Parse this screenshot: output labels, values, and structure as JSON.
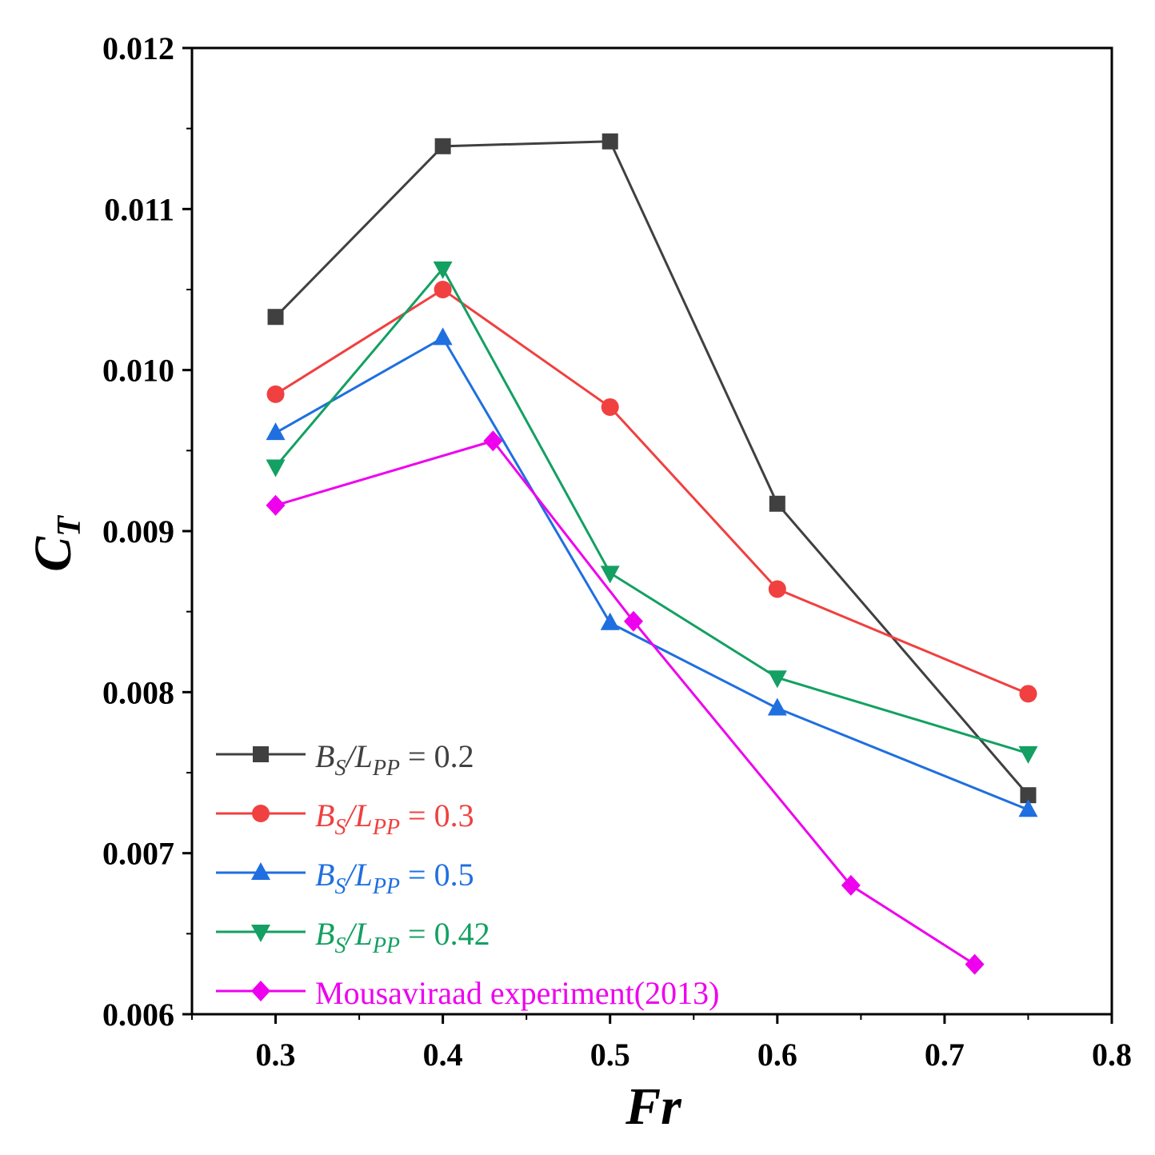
{
  "chart_data": {
    "type": "line",
    "title": "",
    "xlabel": "Fr",
    "ylabel": {
      "main": "C",
      "sub": "T"
    },
    "xlim": [
      0.25,
      0.8
    ],
    "ylim": [
      0.006,
      0.012
    ],
    "x_ticks": [
      {
        "value": 0.3,
        "label": "0.3"
      },
      {
        "value": 0.4,
        "label": "0.4"
      },
      {
        "value": 0.5,
        "label": "0.5"
      },
      {
        "value": 0.6,
        "label": "0.6"
      },
      {
        "value": 0.7,
        "label": "0.7"
      },
      {
        "value": 0.8,
        "label": "0.8"
      }
    ],
    "y_ticks": [
      {
        "value": 0.006,
        "label": "0.006"
      },
      {
        "value": 0.007,
        "label": "0.007"
      },
      {
        "value": 0.008,
        "label": "0.008"
      },
      {
        "value": 0.009,
        "label": "0.009"
      },
      {
        "value": 0.01,
        "label": "0.010"
      },
      {
        "value": 0.011,
        "label": "0.011"
      },
      {
        "value": 0.012,
        "label": "0.012"
      }
    ],
    "legend_position": "bottom-left",
    "series": [
      {
        "name": "B_S/L_PP = 0.2",
        "legend": {
          "b": "B",
          "s": "S",
          "slash": "/",
          "l": "L",
          "pp": "PP",
          "tail": " = 0.2"
        },
        "color": "#404040",
        "marker": "square",
        "x": [
          0.3,
          0.4,
          0.5,
          0.6,
          0.75
        ],
        "y": [
          0.01033,
          0.01139,
          0.01142,
          0.00917,
          0.00736
        ]
      },
      {
        "name": "B_S/L_PP = 0.3",
        "legend": {
          "b": "B",
          "s": "S",
          "slash": "/",
          "l": "L",
          "pp": "PP",
          "tail": " = 0.3"
        },
        "color": "#f04040",
        "marker": "circle",
        "x": [
          0.3,
          0.4,
          0.5,
          0.6,
          0.75
        ],
        "y": [
          0.00985,
          0.0105,
          0.00977,
          0.00864,
          0.00799
        ]
      },
      {
        "name": "B_S/L_PP = 0.5",
        "legend": {
          "b": "B",
          "s": "S",
          "slash": "/",
          "l": "L",
          "pp": "PP",
          "tail": " = 0.5"
        },
        "color": "#1f6fe0",
        "marker": "triangle-up",
        "x": [
          0.3,
          0.4,
          0.5,
          0.6,
          0.75
        ],
        "y": [
          0.00961,
          0.0102,
          0.00843,
          0.0079,
          0.00727
        ]
      },
      {
        "name": "B_S/L_PP = 0.42",
        "legend": {
          "b": "B",
          "s": "S",
          "slash": "/",
          "l": "L",
          "pp": "PP",
          "tail": " = 0.42"
        },
        "color": "#13a062",
        "marker": "triangle-down",
        "x": [
          0.3,
          0.4,
          0.5,
          0.6,
          0.75
        ],
        "y": [
          0.0094,
          0.01063,
          0.00874,
          0.00809,
          0.00762
        ]
      },
      {
        "name": "Mousaviraad experiment(2013)",
        "legend": {
          "text": "Mousaviraad experiment(2013)"
        },
        "color": "#ee00ee",
        "marker": "diamond",
        "x": [
          0.3,
          0.43,
          0.514,
          0.644,
          0.718
        ],
        "y": [
          0.00916,
          0.00956,
          0.00844,
          0.0068,
          0.00631
        ]
      }
    ]
  }
}
